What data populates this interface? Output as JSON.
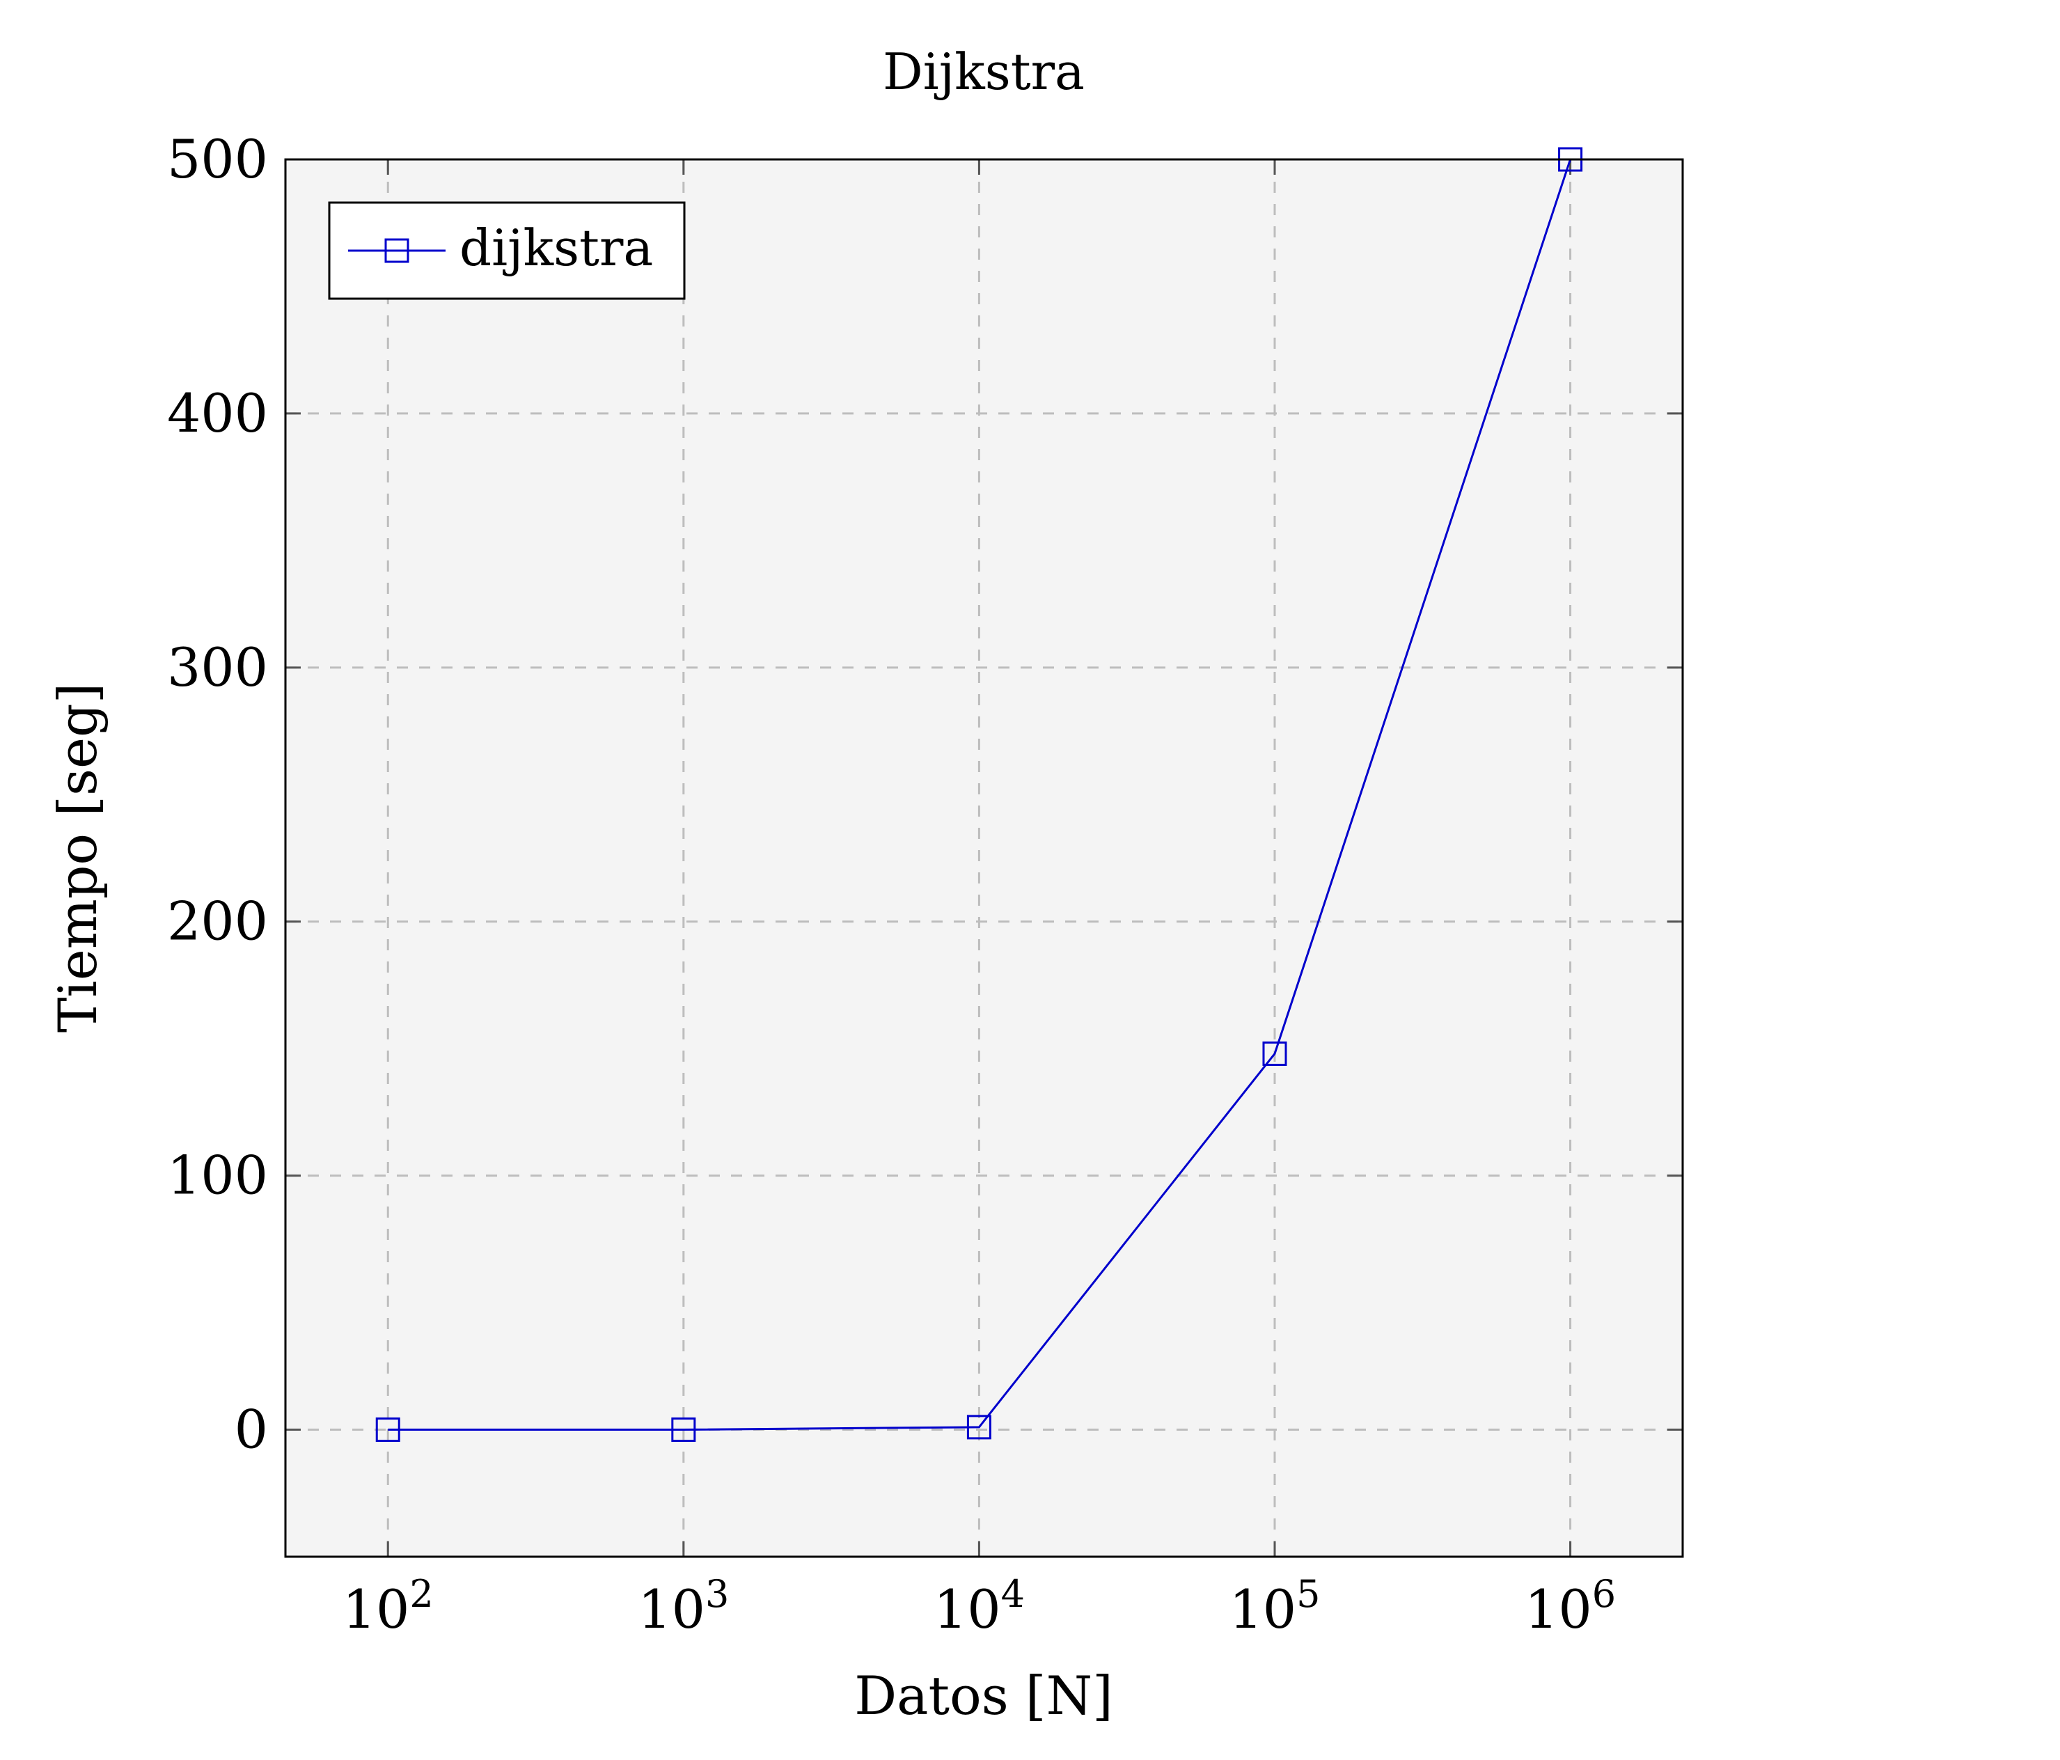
{
  "chart_data": {
    "type": "line",
    "title": "Dijkstra",
    "xlabel": "Datos [N]",
    "ylabel": "Tiempo [seg]",
    "x_scale": "log",
    "xlim": [
      45,
      2400000
    ],
    "ylim": [
      -50,
      500
    ],
    "x_ticks": [
      {
        "value": 100,
        "base": "10",
        "exp": "2"
      },
      {
        "value": 1000,
        "base": "10",
        "exp": "3"
      },
      {
        "value": 10000,
        "base": "10",
        "exp": "4"
      },
      {
        "value": 100000,
        "base": "10",
        "exp": "5"
      },
      {
        "value": 1000000,
        "base": "10",
        "exp": "6"
      }
    ],
    "y_ticks": [
      {
        "value": 0,
        "label": "0"
      },
      {
        "value": 100,
        "label": "100"
      },
      {
        "value": 200,
        "label": "200"
      },
      {
        "value": 300,
        "label": "300"
      },
      {
        "value": 400,
        "label": "400"
      },
      {
        "value": 500,
        "label": "500"
      }
    ],
    "grid": true,
    "grid_style": "dashed",
    "background": "#f4f4f4",
    "legend_position": "top-left",
    "series": [
      {
        "name": "dijkstra",
        "color": "#0000cc",
        "marker": "square",
        "points": [
          {
            "x": 100,
            "y": 0
          },
          {
            "x": 1000,
            "y": 0
          },
          {
            "x": 10000,
            "y": 1
          },
          {
            "x": 100000,
            "y": 148
          },
          {
            "x": 1000000,
            "y": 500
          }
        ]
      }
    ]
  }
}
